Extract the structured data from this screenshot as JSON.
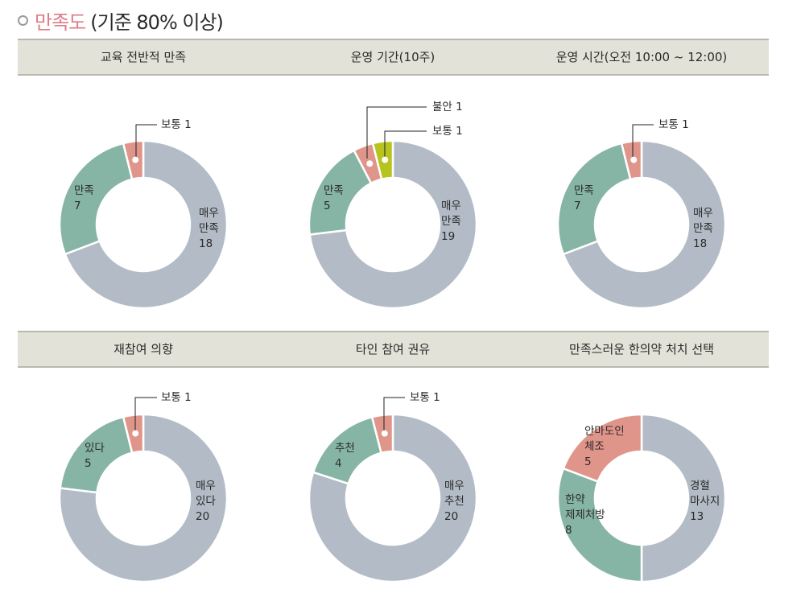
{
  "header": {
    "title_main": "만족도",
    "title_rest": "(기준 80% 이상)"
  },
  "colors": {
    "gray": "#b3bcc6",
    "green": "#87b5a5",
    "red": "#e0958a",
    "yellow": "#b7c420",
    "header_bg": "#e3e2d8",
    "title_accent": "#de7b86"
  },
  "chart_data": [
    {
      "type": "pie",
      "style": "donut",
      "title": "교육 전반적 만족",
      "slices": [
        {
          "label": "매우 만족",
          "value": 18,
          "color": "#b3bcc6"
        },
        {
          "label": "만족",
          "value": 7,
          "color": "#87b5a5"
        },
        {
          "label": "보통",
          "value": 1,
          "color": "#e0958a"
        }
      ],
      "text": {
        "a": "매우\n만족\n18",
        "b": "만족\n7",
        "c": "보통 1"
      }
    },
    {
      "type": "pie",
      "style": "donut",
      "title": "운영 기간(10주)",
      "slices": [
        {
          "label": "매우 만족",
          "value": 19,
          "color": "#b3bcc6"
        },
        {
          "label": "만족",
          "value": 5,
          "color": "#87b5a5"
        },
        {
          "label": "불안",
          "value": 1,
          "color": "#e0958a"
        },
        {
          "label": "보통",
          "value": 1,
          "color": "#b7c420"
        }
      ],
      "text": {
        "a": "매우\n만족\n19",
        "b": "만족\n5",
        "c": "불안 1",
        "d": "보통 1"
      }
    },
    {
      "type": "pie",
      "style": "donut",
      "title": "운영 시간(오전 10:00 ~ 12:00)",
      "slices": [
        {
          "label": "매우 만족",
          "value": 18,
          "color": "#b3bcc6"
        },
        {
          "label": "만족",
          "value": 7,
          "color": "#87b5a5"
        },
        {
          "label": "보통",
          "value": 1,
          "color": "#e0958a"
        }
      ],
      "text": {
        "a": "매우\n만족\n18",
        "b": "만족\n7",
        "c": "보통 1"
      }
    },
    {
      "type": "pie",
      "style": "donut",
      "title": "재참여 의향",
      "slices": [
        {
          "label": "매우 있다",
          "value": 20,
          "color": "#b3bcc6"
        },
        {
          "label": "있다",
          "value": 5,
          "color": "#87b5a5"
        },
        {
          "label": "보통",
          "value": 1,
          "color": "#e0958a"
        }
      ],
      "text": {
        "a": "매우\n있다\n20",
        "b": "있다\n5",
        "c": "보통 1"
      }
    },
    {
      "type": "pie",
      "style": "donut",
      "title": "타인 참여 권유",
      "slices": [
        {
          "label": "매우 추천",
          "value": 20,
          "color": "#b3bcc6"
        },
        {
          "label": "추천",
          "value": 4,
          "color": "#87b5a5"
        },
        {
          "label": "보통",
          "value": 1,
          "color": "#e0958a"
        }
      ],
      "text": {
        "a": "매우\n추천\n20",
        "b": "추천\n4",
        "c": "보통 1"
      }
    },
    {
      "type": "pie",
      "style": "donut",
      "title": "만족스러운 한의약 처치 선택",
      "slices": [
        {
          "label": "경혈 마사지",
          "value": 13,
          "color": "#b3bcc6"
        },
        {
          "label": "한약 제제처방",
          "value": 8,
          "color": "#87b5a5"
        },
        {
          "label": "안마도인 체조",
          "value": 5,
          "color": "#e0958a"
        }
      ],
      "text": {
        "a": "경혈\n마사지\n13",
        "b": "한약\n제제처방\n8",
        "c": "안마도인\n체조\n5"
      }
    }
  ]
}
